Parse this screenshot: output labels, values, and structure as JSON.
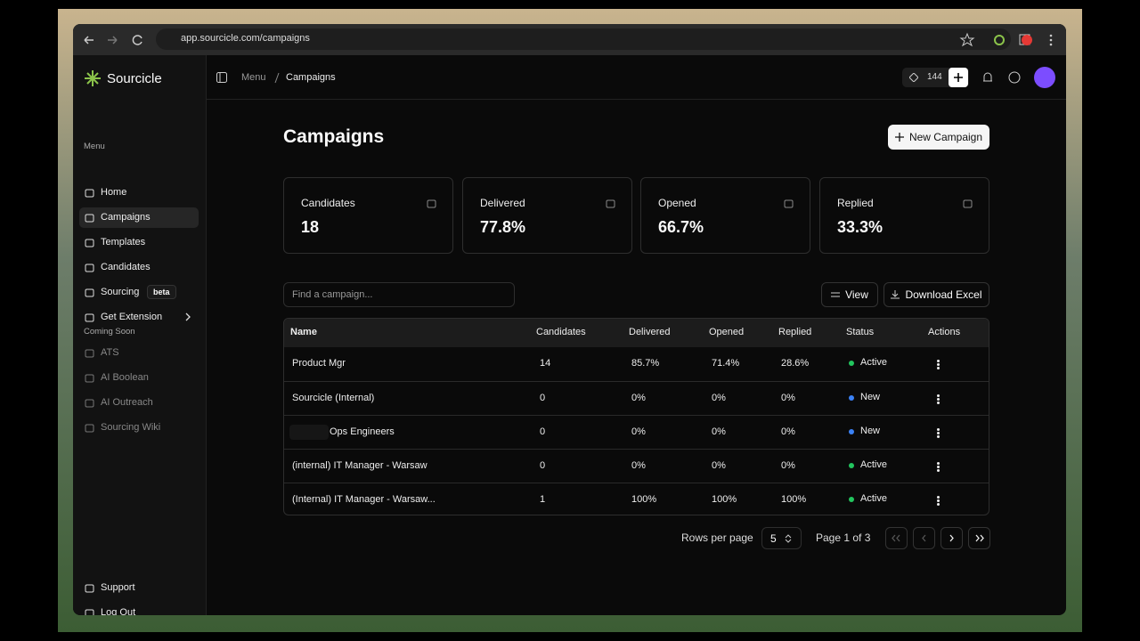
{
  "browser": {
    "url": "app.sourcicle.com/campaigns"
  },
  "sidebar": {
    "brand": "Sourcicle",
    "menu_heading": "Menu",
    "menu": [
      {
        "label": "Home"
      },
      {
        "label": "Campaigns"
      },
      {
        "label": "Templates"
      },
      {
        "label": "Candidates"
      },
      {
        "label": "Sourcing",
        "badge": "beta"
      },
      {
        "label": "Get Extension"
      }
    ],
    "coming_soon_heading": "Coming Soon",
    "coming_soon": [
      "ATS",
      "AI Boolean",
      "AI Outreach",
      "Sourcing Wiki"
    ],
    "footer": [
      "Support",
      "Log Out"
    ]
  },
  "topbar": {
    "breadcrumb": [
      "Menu",
      "Campaigns"
    ],
    "credits": "144"
  },
  "page": {
    "title": "Campaigns",
    "new_button": "New Campaign"
  },
  "stats": [
    {
      "label": "Candidates",
      "value": "18"
    },
    {
      "label": "Delivered",
      "value": "77.8%"
    },
    {
      "label": "Opened",
      "value": "66.7%"
    },
    {
      "label": "Replied",
      "value": "33.3%"
    }
  ],
  "search_placeholder": "Find a campaign...",
  "toolbar": [
    "View",
    "Download Excel"
  ],
  "table": {
    "columns": [
      "Name",
      "Candidates",
      "Delivered",
      "Opened",
      "Replied",
      "Status",
      "Actions"
    ],
    "rows": [
      {
        "name": "Product Mgr",
        "candidates": "14",
        "delivered": "85.7%",
        "opened": "71.4%",
        "replied": "28.6%",
        "status": "Active",
        "status_color": "#22c55e"
      },
      {
        "name": "Sourcicle (Internal)",
        "candidates": "0",
        "delivered": "0%",
        "opened": "0%",
        "replied": "0%",
        "status": "New",
        "status_color": "#3b82f6"
      },
      {
        "name": "Ops Engineers",
        "candidates": "0",
        "delivered": "0%",
        "opened": "0%",
        "replied": "0%",
        "status": "New",
        "status_color": "#3b82f6"
      },
      {
        "name": "(internal) IT Manager - Warsaw",
        "candidates": "0",
        "delivered": "0%",
        "opened": "0%",
        "replied": "0%",
        "status": "Active",
        "status_color": "#22c55e"
      },
      {
        "name": "(Internal) IT Manager - Warsaw...",
        "candidates": "1",
        "delivered": "100%",
        "opened": "100%",
        "replied": "100%",
        "status": "Active",
        "status_color": "#22c55e"
      }
    ]
  },
  "pagination": {
    "rows_per_page_label": "Rows per page",
    "rows_per_page": "5",
    "page": "Page 1 of 3"
  }
}
